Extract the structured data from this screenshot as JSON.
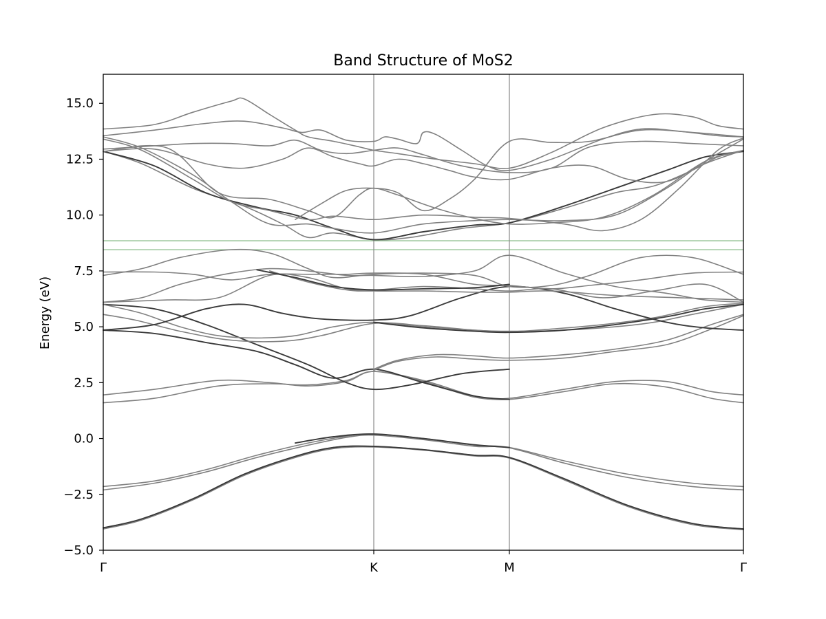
{
  "chart_data": {
    "type": "line",
    "title": "Band Structure of MoS2",
    "ylabel": "Energy (eV)",
    "xlabel": "",
    "ylim": [
      -5.0,
      16.3
    ],
    "xlim": [
      0,
      1
    ],
    "grid": false,
    "yticks": [
      -5.0,
      -2.5,
      0.0,
      2.5,
      5.0,
      7.5,
      10.0,
      12.5,
      15.0
    ],
    "ytick_labels": [
      "−5.0",
      "−2.5",
      "0.0",
      "2.5",
      "5.0",
      "7.5",
      "10.0",
      "12.5",
      "15.0"
    ],
    "kpoints": [
      {
        "label": "Γ",
        "x": 0.0
      },
      {
        "label": "K",
        "x": 0.4226
      },
      {
        "label": "M",
        "x": 0.6344
      },
      {
        "label": "Γ",
        "x": 1.0
      }
    ],
    "horizontal_lines": [
      {
        "y": 8.45,
        "color": "#8fbf8f"
      },
      {
        "y": 8.85,
        "color": "#8fbf8f"
      }
    ],
    "colors": {
      "light_band": "#808080",
      "dark_band": "#3a3a3a",
      "kline": "#888888"
    },
    "series": [
      {
        "style": "light",
        "x": [
          0,
          0.06,
          0.14,
          0.22,
          0.3,
          0.36,
          0.4226,
          0.5,
          0.58,
          0.6344,
          0.72,
          0.82,
          0.92,
          1.0
        ],
        "y": [
          -4.0,
          -3.6,
          -2.7,
          -1.6,
          -0.8,
          -0.4,
          -0.35,
          -0.5,
          -0.75,
          -0.85,
          -1.8,
          -3.0,
          -3.8,
          -4.05
        ]
      },
      {
        "style": "light",
        "x": [
          0,
          0.06,
          0.14,
          0.22,
          0.3,
          0.36,
          0.4226,
          0.5,
          0.58,
          0.6344,
          0.72,
          0.82,
          0.92,
          1.0
        ],
        "y": [
          -4.05,
          -3.65,
          -2.75,
          -1.65,
          -0.85,
          -0.45,
          -0.38,
          -0.52,
          -0.78,
          -0.88,
          -1.85,
          -3.05,
          -3.85,
          -4.08
        ]
      },
      {
        "style": "dark",
        "x": [
          0,
          0.06,
          0.14,
          0.22,
          0.3,
          0.36,
          0.4226,
          0.5,
          0.58,
          0.6344,
          0.72,
          0.82,
          0.92,
          1.0
        ],
        "y": [
          -4.0,
          -3.6,
          -2.7,
          -1.6,
          -0.8,
          -0.4,
          -0.35,
          -0.5,
          -0.75,
          -0.85,
          -1.8,
          -3.0,
          -3.8,
          -4.05
        ]
      },
      {
        "style": "light",
        "x": [
          0,
          0.08,
          0.16,
          0.24,
          0.32,
          0.38,
          0.4226,
          0.5,
          0.58,
          0.6344,
          0.72,
          0.82,
          0.92,
          1.0
        ],
        "y": [
          -2.15,
          -1.9,
          -1.4,
          -0.75,
          -0.2,
          0.1,
          0.2,
          0.0,
          -0.3,
          -0.4,
          -1.0,
          -1.6,
          -2.0,
          -2.15
        ]
      },
      {
        "style": "light",
        "x": [
          0,
          0.08,
          0.16,
          0.24,
          0.32,
          0.38,
          0.4226,
          0.5,
          0.58,
          0.6344,
          0.72,
          0.82,
          0.92,
          1.0
        ],
        "y": [
          -2.3,
          -2.0,
          -1.5,
          -0.85,
          -0.3,
          0.05,
          0.15,
          -0.05,
          -0.35,
          -0.42,
          -1.1,
          -1.75,
          -2.15,
          -2.3
        ]
      },
      {
        "style": "dark",
        "x": [
          0.3,
          0.36,
          0.4226,
          0.5,
          0.58,
          0.6344
        ],
        "y": [
          -0.2,
          0.08,
          0.2,
          0.0,
          -0.28,
          -0.4
        ]
      },
      {
        "style": "light",
        "x": [
          0,
          0.08,
          0.18,
          0.26,
          0.32,
          0.38,
          0.4226,
          0.5,
          0.58,
          0.6344,
          0.72,
          0.8,
          0.88,
          0.95,
          1.0
        ],
        "y": [
          1.6,
          1.8,
          2.35,
          2.45,
          2.4,
          2.6,
          3.0,
          2.6,
          1.9,
          1.75,
          2.1,
          2.45,
          2.3,
          1.8,
          1.6
        ]
      },
      {
        "style": "light",
        "x": [
          0,
          0.08,
          0.18,
          0.26,
          0.32,
          0.38,
          0.4226,
          0.5,
          0.58,
          0.6344,
          0.72,
          0.8,
          0.88,
          0.95,
          1.0
        ],
        "y": [
          1.95,
          2.2,
          2.6,
          2.5,
          2.35,
          2.55,
          3.0,
          2.55,
          1.85,
          1.8,
          2.2,
          2.55,
          2.55,
          2.1,
          1.95
        ]
      },
      {
        "style": "dark",
        "x": [
          0,
          0.08,
          0.16,
          0.24,
          0.32,
          0.38,
          0.4226,
          0.48,
          0.56,
          0.6344
        ],
        "y": [
          6.0,
          5.8,
          5.1,
          4.2,
          3.3,
          2.5,
          2.2,
          2.4,
          2.9,
          3.1
        ]
      },
      {
        "style": "dark",
        "x": [
          0,
          0.08,
          0.16,
          0.24,
          0.3,
          0.36,
          0.4226,
          0.5,
          0.58,
          0.6344
        ],
        "y": [
          4.85,
          4.7,
          4.3,
          3.9,
          3.3,
          2.7,
          3.1,
          2.5,
          1.9,
          1.75
        ]
      },
      {
        "style": "light",
        "x": [
          0.4226,
          0.46,
          0.52,
          0.58,
          0.6344,
          0.72,
          0.8,
          0.88,
          0.95,
          1.0
        ],
        "y": [
          3.1,
          3.5,
          3.75,
          3.7,
          3.6,
          3.75,
          4.0,
          4.4,
          5.1,
          5.55
        ]
      },
      {
        "style": "light",
        "x": [
          0.4226,
          0.46,
          0.52,
          0.58,
          0.6344,
          0.72,
          0.8,
          0.88,
          0.95,
          1.0
        ],
        "y": [
          3.05,
          3.45,
          3.65,
          3.55,
          3.5,
          3.6,
          3.9,
          4.2,
          4.9,
          5.5
        ]
      },
      {
        "style": "light",
        "x": [
          0,
          0.05,
          0.12,
          0.2,
          0.28,
          0.34,
          0.4226,
          0.5,
          0.58,
          0.6344,
          0.72,
          0.8,
          0.86,
          0.92,
          1.0
        ],
        "y": [
          5.55,
          5.3,
          4.8,
          4.4,
          4.35,
          4.6,
          5.15,
          5.05,
          4.85,
          4.8,
          4.85,
          5.0,
          5.2,
          5.55,
          6.0
        ]
      },
      {
        "style": "light",
        "x": [
          0,
          0.06,
          0.12,
          0.18,
          0.24,
          0.3,
          0.36,
          0.4226,
          0.5,
          0.58,
          0.6344,
          0.7,
          0.78,
          0.86,
          0.94,
          1.0
        ],
        "y": [
          6.0,
          5.6,
          5.0,
          4.6,
          4.5,
          4.6,
          5.0,
          5.2,
          5.0,
          4.85,
          4.78,
          4.9,
          5.1,
          5.4,
          5.9,
          6.05
        ]
      },
      {
        "style": "dark",
        "x": [
          0,
          0.08,
          0.16,
          0.22,
          0.28,
          0.34,
          0.4226,
          0.48,
          0.56,
          0.6344,
          0.72,
          0.8,
          0.88,
          0.94,
          1.0
        ],
        "y": [
          4.85,
          5.1,
          5.8,
          6.0,
          5.6,
          5.35,
          5.3,
          5.5,
          6.3,
          6.8,
          6.5,
          5.8,
          5.2,
          4.95,
          4.85
        ]
      },
      {
        "style": "dark",
        "x": [
          0.4226,
          0.5,
          0.58,
          0.6344,
          0.72,
          0.8,
          0.88,
          0.94,
          1.0
        ],
        "y": [
          5.2,
          4.95,
          4.8,
          4.75,
          4.85,
          5.1,
          5.45,
          5.8,
          6.0
        ]
      },
      {
        "style": "light",
        "x": [
          0,
          0.06,
          0.12,
          0.2,
          0.26,
          0.32,
          0.38,
          0.4226,
          0.5,
          0.58,
          0.6344,
          0.72,
          0.8,
          0.88,
          0.94,
          1.0
        ],
        "y": [
          6.1,
          6.3,
          6.9,
          7.4,
          7.6,
          7.5,
          7.3,
          7.3,
          7.25,
          7.5,
          8.2,
          7.4,
          6.8,
          6.5,
          6.2,
          6.1
        ]
      },
      {
        "style": "light",
        "x": [
          0,
          0.06,
          0.12,
          0.2,
          0.26,
          0.32,
          0.36,
          0.4226,
          0.5,
          0.58,
          0.6344,
          0.7,
          0.76,
          0.84,
          0.92,
          1.0
        ],
        "y": [
          7.3,
          7.6,
          8.1,
          8.45,
          8.3,
          7.6,
          7.2,
          7.35,
          7.4,
          7.3,
          6.8,
          6.85,
          7.3,
          8.1,
          8.1,
          7.35
        ]
      },
      {
        "style": "light",
        "x": [
          0,
          0.08,
          0.14,
          0.2,
          0.26,
          0.32,
          0.38,
          0.4226,
          0.5,
          0.58,
          0.6344,
          0.7,
          0.76,
          0.84,
          0.92,
          1.0
        ],
        "y": [
          7.45,
          7.45,
          7.35,
          7.1,
          7.35,
          7.35,
          7.35,
          7.4,
          7.35,
          6.9,
          6.85,
          6.7,
          6.85,
          7.1,
          7.4,
          7.45
        ]
      },
      {
        "style": "light",
        "x": [
          0,
          0.1,
          0.18,
          0.26,
          0.32,
          0.38,
          0.4226,
          0.5,
          0.58,
          0.6344,
          0.7,
          0.78,
          0.86,
          0.94,
          1.0
        ],
        "y": [
          6.1,
          6.2,
          6.3,
          7.3,
          7.2,
          6.7,
          6.65,
          6.8,
          6.7,
          6.6,
          6.7,
          6.3,
          6.6,
          6.9,
          6.1
        ]
      },
      {
        "style": "light",
        "x": [
          0.26,
          0.32,
          0.38,
          0.4226,
          0.5,
          0.58,
          0.6344,
          0.7,
          0.8,
          0.9,
          1.0
        ],
        "y": [
          7.5,
          7.0,
          6.65,
          6.6,
          6.6,
          6.55,
          6.55,
          6.6,
          6.4,
          6.3,
          6.2
        ]
      },
      {
        "style": "dark",
        "x": [
          0.24,
          0.3,
          0.36,
          0.4226,
          0.5,
          0.58,
          0.6344
        ],
        "y": [
          7.55,
          7.2,
          6.8,
          6.65,
          6.7,
          6.75,
          6.9
        ]
      },
      {
        "style": "light",
        "x": [
          0,
          0.06,
          0.14,
          0.22,
          0.28,
          0.32,
          0.36,
          0.4226,
          0.48,
          0.56,
          0.6344,
          0.72,
          0.8,
          0.86,
          0.92,
          0.96,
          1.0
        ],
        "y": [
          12.85,
          12.3,
          11.2,
          10.4,
          9.6,
          9.0,
          9.2,
          8.9,
          9.0,
          9.4,
          9.65,
          10.3,
          11.0,
          11.3,
          12.0,
          12.6,
          12.85
        ]
      },
      {
        "style": "dark",
        "x": [
          0,
          0.08,
          0.16,
          0.24,
          0.3,
          0.36,
          0.4226,
          0.5,
          0.58,
          0.6344,
          0.72,
          0.8,
          0.88,
          0.94,
          1.0
        ],
        "y": [
          12.85,
          12.2,
          11.0,
          10.35,
          10.0,
          9.4,
          8.9,
          9.25,
          9.55,
          9.65,
          10.4,
          11.2,
          12.0,
          12.6,
          12.85
        ]
      },
      {
        "style": "light",
        "x": [
          0,
          0.06,
          0.14,
          0.2,
          0.26,
          0.32,
          0.36,
          0.4226,
          0.5,
          0.58,
          0.6344,
          0.72,
          0.8,
          0.88,
          0.94,
          1.0
        ],
        "y": [
          13.5,
          13.0,
          11.8,
          10.6,
          9.6,
          9.6,
          9.4,
          9.2,
          9.6,
          9.75,
          9.8,
          9.75,
          10.0,
          11.2,
          12.4,
          13.4
        ]
      },
      {
        "style": "light",
        "x": [
          0,
          0.06,
          0.14,
          0.2,
          0.26,
          0.32,
          0.36,
          0.4226,
          0.5,
          0.58,
          0.6344,
          0.72,
          0.78,
          0.84,
          0.9,
          0.96,
          1.0
        ],
        "y": [
          13.4,
          12.9,
          11.6,
          10.6,
          10.2,
          9.8,
          9.95,
          9.8,
          10.0,
          9.9,
          9.85,
          9.6,
          9.3,
          9.8,
          11.2,
          12.9,
          13.45
        ]
      },
      {
        "style": "light",
        "x": [
          0,
          0.1,
          0.18,
          0.26,
          0.32,
          0.36,
          0.4,
          0.4226,
          0.46,
          0.52,
          0.58,
          0.6344,
          0.7,
          0.78,
          0.86,
          0.94,
          1.0
        ],
        "y": [
          12.85,
          13.0,
          11.0,
          10.7,
          10.2,
          9.9,
          10.9,
          11.2,
          10.9,
          10.3,
          9.85,
          9.6,
          9.65,
          9.9,
          10.9,
          12.4,
          12.9
        ]
      },
      {
        "style": "light",
        "x": [
          0.3,
          0.34,
          0.38,
          0.4226,
          0.46,
          0.5,
          0.54,
          0.58,
          0.6344,
          0.7,
          0.76,
          0.84,
          0.92,
          1.0
        ],
        "y": [
          9.8,
          10.5,
          11.1,
          11.2,
          11.0,
          10.2,
          10.7,
          11.6,
          13.3,
          13.25,
          13.3,
          13.8,
          13.7,
          13.5
        ]
      },
      {
        "style": "light",
        "x": [
          0,
          0.08,
          0.16,
          0.22,
          0.28,
          0.32,
          0.36,
          0.4,
          0.4226,
          0.46,
          0.5,
          0.54,
          0.58,
          0.6344,
          0.7,
          0.76,
          0.82,
          0.88,
          0.94,
          1.0
        ],
        "y": [
          12.85,
          12.95,
          12.3,
          12.1,
          12.5,
          13.0,
          12.6,
          12.3,
          12.2,
          12.5,
          12.3,
          12.0,
          11.7,
          11.6,
          12.1,
          12.2,
          11.6,
          11.5,
          12.3,
          12.9
        ]
      },
      {
        "style": "light",
        "x": [
          0,
          0.08,
          0.14,
          0.2,
          0.26,
          0.3,
          0.34,
          0.38,
          0.4226,
          0.46,
          0.5,
          0.56,
          0.6344,
          0.7,
          0.76,
          0.84,
          0.92,
          1.0
        ],
        "y": [
          12.95,
          13.1,
          13.2,
          13.2,
          13.1,
          13.35,
          12.9,
          12.75,
          12.9,
          13.0,
          12.7,
          12.2,
          11.9,
          12.1,
          13.05,
          13.3,
          13.2,
          13.1
        ]
      },
      {
        "style": "light",
        "x": [
          0,
          0.08,
          0.16,
          0.22,
          0.28,
          0.31,
          0.34,
          0.38,
          0.4226,
          0.44,
          0.46,
          0.49,
          0.5,
          0.52,
          0.56,
          0.6,
          0.6344,
          0.7,
          0.78,
          0.84,
          0.9,
          0.96,
          1.0
        ],
        "y": [
          13.55,
          13.8,
          14.1,
          14.2,
          13.9,
          13.7,
          13.8,
          13.35,
          13.3,
          13.5,
          13.4,
          13.2,
          13.7,
          13.6,
          12.9,
          12.2,
          12.0,
          12.5,
          13.4,
          13.85,
          13.75,
          13.55,
          13.5
        ]
      },
      {
        "style": "light",
        "x": [
          0,
          0.08,
          0.14,
          0.2,
          0.22,
          0.26,
          0.3,
          0.32,
          0.36,
          0.4,
          0.4226,
          0.46,
          0.52,
          0.58,
          0.6344,
          0.7,
          0.78,
          0.86,
          0.92,
          0.96,
          1.0
        ],
        "y": [
          13.85,
          14.05,
          14.6,
          15.1,
          15.2,
          14.5,
          13.8,
          13.5,
          13.3,
          13.05,
          12.9,
          12.75,
          12.5,
          12.3,
          12.1,
          12.8,
          13.9,
          14.5,
          14.4,
          14.0,
          13.85
        ]
      }
    ]
  }
}
